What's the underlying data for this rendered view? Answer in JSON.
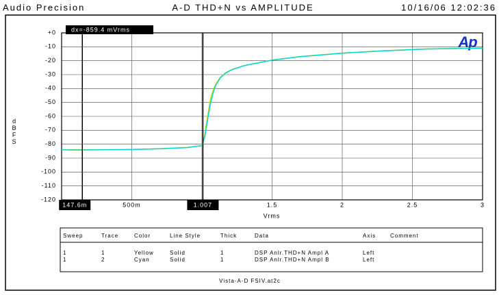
{
  "header": {
    "left": "Audio Precision",
    "center": "A-D THD+N vs AMPLITUDE",
    "right": "10/16/06 12:02:36"
  },
  "chart_data": {
    "type": "line",
    "logo": "Ap",
    "ylabel": "dBFS",
    "xlabel": "Vrms",
    "annotation": "dx=-859.4 mVrms",
    "cursors": [
      {
        "value": 0.1476,
        "label": "147.6m"
      },
      {
        "value": 1.007,
        "label": "1.007"
      }
    ],
    "xlim": [
      0,
      3
    ],
    "ylim": [
      -120,
      0
    ],
    "xticks": [
      0,
      {
        "value": 0.5,
        "label": "500m"
      },
      1,
      1.5,
      2,
      2.5,
      3
    ],
    "yticks": [
      {
        "value": 0,
        "label": "+0"
      },
      -10,
      -20,
      -30,
      -40,
      -50,
      -60,
      -70,
      -80,
      -90,
      -100,
      -110,
      -120
    ],
    "grid": true,
    "x": [
      0.0,
      0.1,
      0.3,
      0.5,
      0.7,
      0.9,
      1.0,
      1.02,
      1.04,
      1.06,
      1.08,
      1.1,
      1.13,
      1.17,
      1.22,
      1.3,
      1.4,
      1.5,
      1.7,
      2.0,
      2.3,
      2.6,
      3.0
    ],
    "series": [
      {
        "name": "Yellow",
        "color": "#d8d800",
        "values": [
          -84,
          -84,
          -84,
          -83.8,
          -83.2,
          -82.3,
          -81,
          -73,
          -60,
          -48,
          -41,
          -36.5,
          -32,
          -28.5,
          -26,
          -23.5,
          -21.5,
          -19.5,
          -17,
          -14.5,
          -12.8,
          -11.5,
          -11
        ]
      },
      {
        "name": "Cyan",
        "color": "#00d8d8",
        "values": [
          -84,
          -84.2,
          -84,
          -83.8,
          -83.3,
          -82.4,
          -81,
          -75,
          -63,
          -51,
          -43,
          -37.5,
          -32.5,
          -28.8,
          -26.2,
          -23.6,
          -21.6,
          -19.6,
          -17.1,
          -14.6,
          -12.9,
          -11.6,
          -11
        ]
      }
    ]
  },
  "table": {
    "headers": [
      "Sweep",
      "Trace",
      "Color",
      "Line Style",
      "Thick",
      "Data",
      "Axis",
      "Comment"
    ],
    "rows": [
      [
        "1",
        "1",
        "Yellow",
        "Solid",
        "1",
        "DSP Anlr.THD+N Ampl A",
        "Left"
      ],
      [
        "1",
        "2",
        "Cyan",
        "Solid",
        "1",
        "DSP Anlr.THD+N Ampl B",
        "Left"
      ]
    ]
  },
  "footer": "Vista-A-D FSIV.at2c"
}
